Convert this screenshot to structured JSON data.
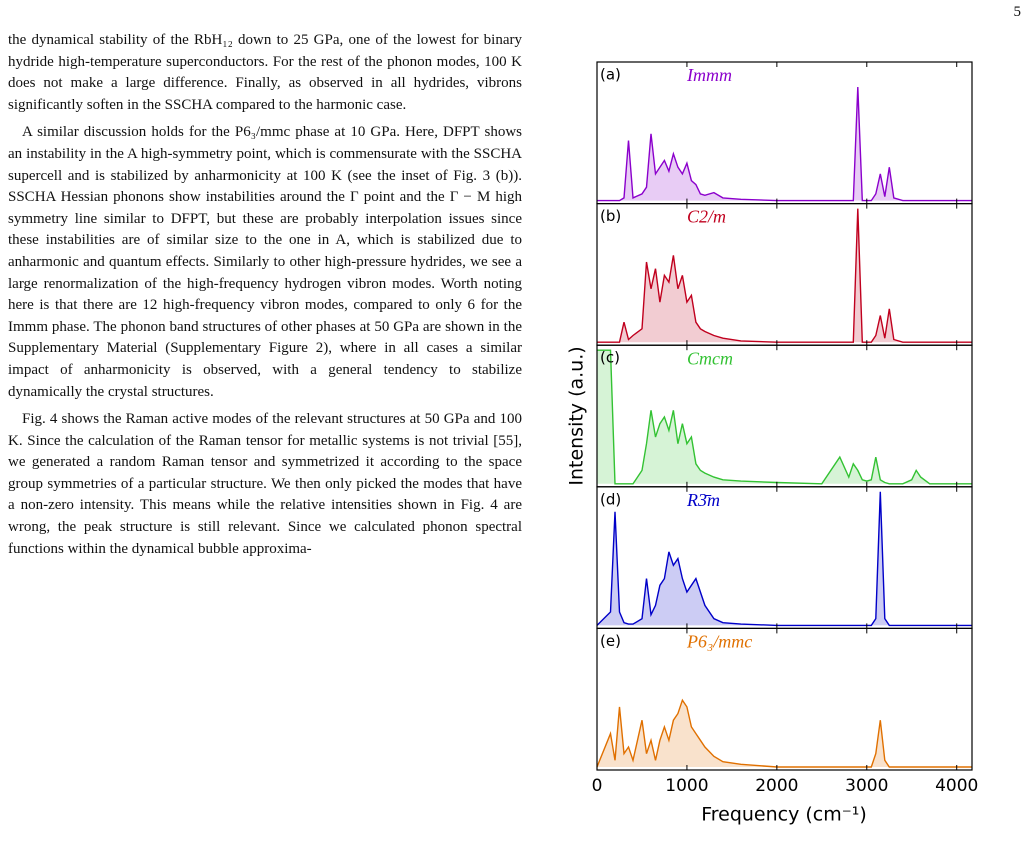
{
  "page_number": "5",
  "paragraphs": [
    "the dynamical stability of the RbH₁₂ down to 25 GPa, one of the lowest for binary hydride high-temperature superconductors. For the rest of the phonon modes, 100 K does not make a large difference. Finally, as observed in all hydrides, vibrons significantly soften in the SSCHA compared to the harmonic case.",
    "A similar discussion holds for the P6₃/mmc phase at 10 GPa. Here, DFPT shows an instability in the A high-symmetry point, which is commensurate with the SSCHA supercell and is stabilized by anharmonicity at 100 K (see the inset of Fig. 3 (b)). SSCHA Hessian phonons show instabilities around the Γ point and the Γ − M high symmetry line similar to DFPT, but these are probably interpolation issues since these instabilities are of similar size to the one in A, which is stabilized due to anharmonic and quantum effects. Similarly to other high-pressure hydrides, we see a large renormalization of the high-frequency hydrogen vibron modes. Worth noting here is that there are 12 high-frequency vibron modes, compared to only 6 for the Immm phase. The phonon band structures of other phases at 50 GPa are shown in the Supplementary Material (Supplementary Figure 2), where in all cases a similar impact of anharmonicity is observed, with a general tendency to stabilize dynamically the crystal structures.",
    "Fig. 4 shows the Raman active modes of the relevant structures at 50 GPa and 100 K. Since the calculation of the Raman tensor for metallic systems is not trivial [55], we generated a random Raman tensor and symmetrized it according to the space group symmetries of a particular structure. We then only picked the modes that have a non-zero intensity. This means while the relative intensities shown in Fig. 4 are wrong, the peak structure is still relevant. Since we calculated phonon spectral functions within the dynamical bubble approxima-"
  ],
  "figure": {
    "type": "line",
    "ylabel": "Intensity (a.u.)",
    "xlabel": "Frequency (cm⁻¹)",
    "xlim": [
      0,
      4170
    ],
    "xticks": [
      0,
      1000,
      2000,
      3000,
      4000
    ],
    "ylim": [
      0,
      1
    ],
    "x": [
      0,
      150,
      200,
      250,
      300,
      350,
      400,
      500,
      550,
      600,
      650,
      700,
      750,
      800,
      850,
      900,
      950,
      1000,
      1050,
      1100,
      1150,
      1200,
      1300,
      1400,
      1600,
      2000,
      2500,
      2700,
      2800,
      2850,
      2900,
      2950,
      3000,
      3050,
      3100,
      3150,
      3200,
      3250,
      3300,
      3400,
      3500,
      3550,
      3600,
      3700,
      4170
    ],
    "panels": [
      {
        "label": "(a)",
        "title": "Immm",
        "color": "#8b00cc",
        "values": [
          0,
          0,
          0,
          0,
          0.02,
          0.45,
          0.02,
          0.05,
          0.1,
          0.5,
          0.2,
          0.25,
          0.3,
          0.22,
          0.35,
          0.25,
          0.2,
          0.28,
          0.15,
          0.12,
          0.05,
          0.04,
          0.06,
          0.02,
          0.01,
          0,
          0,
          0,
          0,
          0,
          0.85,
          0,
          0,
          0,
          0.05,
          0.2,
          0.03,
          0.25,
          0.02,
          0,
          0,
          0,
          0,
          0,
          0
        ]
      },
      {
        "label": "(b)",
        "title": "C2/m",
        "color": "#c0001e",
        "values": [
          0,
          0,
          0,
          0,
          0.15,
          0.02,
          0.05,
          0.1,
          0.6,
          0.4,
          0.55,
          0.3,
          0.5,
          0.45,
          0.65,
          0.4,
          0.5,
          0.3,
          0.35,
          0.15,
          0.1,
          0.08,
          0.05,
          0.03,
          0.01,
          0,
          0,
          0,
          0,
          0,
          1.0,
          0,
          0,
          0,
          0.05,
          0.2,
          0.03,
          0.25,
          0.02,
          0,
          0,
          0,
          0,
          0,
          0
        ]
      },
      {
        "label": "(c)",
        "title": "Cmcm",
        "color": "#33c233",
        "values": [
          1.0,
          1.0,
          0,
          0,
          0,
          0,
          0,
          0.1,
          0.3,
          0.55,
          0.35,
          0.45,
          0.5,
          0.4,
          0.55,
          0.3,
          0.45,
          0.3,
          0.35,
          0.15,
          0.1,
          0.08,
          0.05,
          0.03,
          0.02,
          0.01,
          0,
          0.2,
          0.05,
          0.15,
          0.1,
          0.03,
          0.02,
          0.03,
          0.2,
          0.03,
          0.01,
          0,
          0,
          0,
          0.03,
          0.1,
          0.05,
          0,
          0
        ]
      },
      {
        "label": "(d)",
        "title": "R3̄m",
        "color": "#0000c8",
        "values": [
          0,
          0.1,
          0.85,
          0.1,
          0.02,
          0.01,
          0.01,
          0.05,
          0.35,
          0.08,
          0.15,
          0.3,
          0.35,
          0.55,
          0.45,
          0.5,
          0.35,
          0.25,
          0.3,
          0.35,
          0.25,
          0.15,
          0.05,
          0.02,
          0.01,
          0,
          0,
          0,
          0,
          0,
          0,
          0,
          0,
          0,
          0.05,
          1.0,
          0.05,
          0,
          0,
          0,
          0,
          0,
          0,
          0,
          0
        ]
      },
      {
        "label": "(e)",
        "title": "P6₃/mmc",
        "color": "#e07000",
        "values": [
          0,
          0.25,
          0.05,
          0.45,
          0.1,
          0.15,
          0.05,
          0.35,
          0.1,
          0.2,
          0.05,
          0.2,
          0.3,
          0.2,
          0.35,
          0.4,
          0.5,
          0.45,
          0.3,
          0.25,
          0.2,
          0.15,
          0.08,
          0.04,
          0.02,
          0,
          0,
          0,
          0,
          0,
          0,
          0,
          0,
          0,
          0.1,
          0.35,
          0.05,
          0,
          0,
          0,
          0,
          0,
          0,
          0,
          0
        ]
      }
    ]
  }
}
